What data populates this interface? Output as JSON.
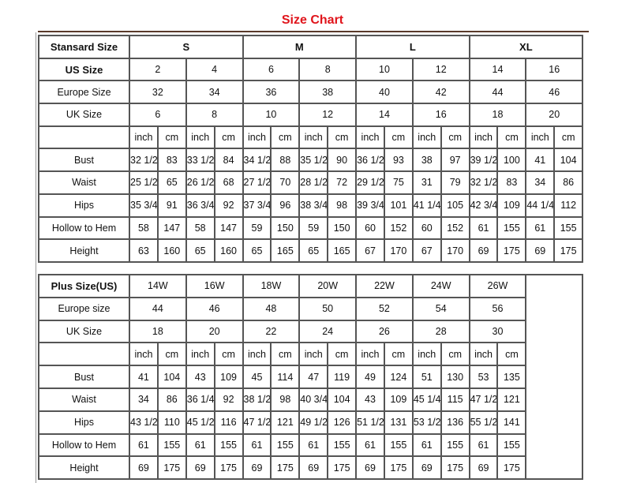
{
  "title": "Size Chart",
  "standard": {
    "header_label": "Stansard Size",
    "groups": [
      "S",
      "M",
      "L",
      "XL"
    ],
    "size_rows": [
      {
        "label": "US Size",
        "values": [
          "2",
          "4",
          "6",
          "8",
          "10",
          "12",
          "14",
          "16"
        ]
      },
      {
        "label": "Europe Size",
        "values": [
          "32",
          "34",
          "36",
          "38",
          "40",
          "42",
          "44",
          "46"
        ]
      },
      {
        "label": "UK Size",
        "values": [
          "6",
          "8",
          "10",
          "12",
          "14",
          "16",
          "18",
          "20"
        ]
      }
    ],
    "units": [
      "inch",
      "cm"
    ],
    "measurements": [
      {
        "label": "Bust",
        "values": [
          "32 1/2",
          "83",
          "33 1/2",
          "84",
          "34 1/2",
          "88",
          "35 1/2",
          "90",
          "36 1/2",
          "93",
          "38",
          "97",
          "39 1/2",
          "100",
          "41",
          "104"
        ]
      },
      {
        "label": "Waist",
        "values": [
          "25 1/2",
          "65",
          "26 1/2",
          "68",
          "27 1/2",
          "70",
          "28 1/2",
          "72",
          "29 1/2",
          "75",
          "31",
          "79",
          "32 1/2",
          "83",
          "34",
          "86"
        ]
      },
      {
        "label": "Hips",
        "values": [
          "35 3/4",
          "91",
          "36 3/4",
          "92",
          "37 3/4",
          "96",
          "38 3/4",
          "98",
          "39 3/4",
          "101",
          "41 1/4",
          "105",
          "42 3/4",
          "109",
          "44 1/4",
          "112"
        ]
      },
      {
        "label": "Hollow to Hem",
        "values": [
          "58",
          "147",
          "58",
          "147",
          "59",
          "150",
          "59",
          "150",
          "60",
          "152",
          "60",
          "152",
          "61",
          "155",
          "61",
          "155"
        ]
      },
      {
        "label": "Height",
        "values": [
          "63",
          "160",
          "65",
          "160",
          "65",
          "165",
          "65",
          "165",
          "67",
          "170",
          "67",
          "170",
          "69",
          "175",
          "69",
          "175"
        ]
      }
    ]
  },
  "plus": {
    "header_label": "Plus Size(US)",
    "sizes": [
      "14W",
      "16W",
      "18W",
      "20W",
      "22W",
      "24W",
      "26W"
    ],
    "size_rows": [
      {
        "label": "Europe size",
        "values": [
          "44",
          "46",
          "48",
          "50",
          "52",
          "54",
          "56"
        ]
      },
      {
        "label": "UK Size",
        "values": [
          "18",
          "20",
          "22",
          "24",
          "26",
          "28",
          "30"
        ]
      }
    ],
    "units": [
      "inch",
      "cm"
    ],
    "measurements": [
      {
        "label": "Bust",
        "values": [
          "41",
          "104",
          "43",
          "109",
          "45",
          "114",
          "47",
          "119",
          "49",
          "124",
          "51",
          "130",
          "53",
          "135"
        ]
      },
      {
        "label": "Waist",
        "values": [
          "34",
          "86",
          "36 1/4",
          "92",
          "38 1/2",
          "98",
          "40 3/4",
          "104",
          "43",
          "109",
          "45 1/4",
          "115",
          "47 1/2",
          "121"
        ]
      },
      {
        "label": "Hips",
        "values": [
          "43 1/2",
          "110",
          "45 1/2",
          "116",
          "47 1/2",
          "121",
          "49 1/2",
          "126",
          "51 1/2",
          "131",
          "53 1/2",
          "136",
          "55 1/2",
          "141"
        ]
      },
      {
        "label": "Hollow to Hem",
        "values": [
          "61",
          "155",
          "61",
          "155",
          "61",
          "155",
          "61",
          "155",
          "61",
          "155",
          "61",
          "155",
          "61",
          "155"
        ]
      },
      {
        "label": "Height",
        "values": [
          "69",
          "175",
          "69",
          "175",
          "69",
          "175",
          "69",
          "175",
          "69",
          "175",
          "69",
          "175",
          "69",
          "175"
        ]
      }
    ]
  }
}
